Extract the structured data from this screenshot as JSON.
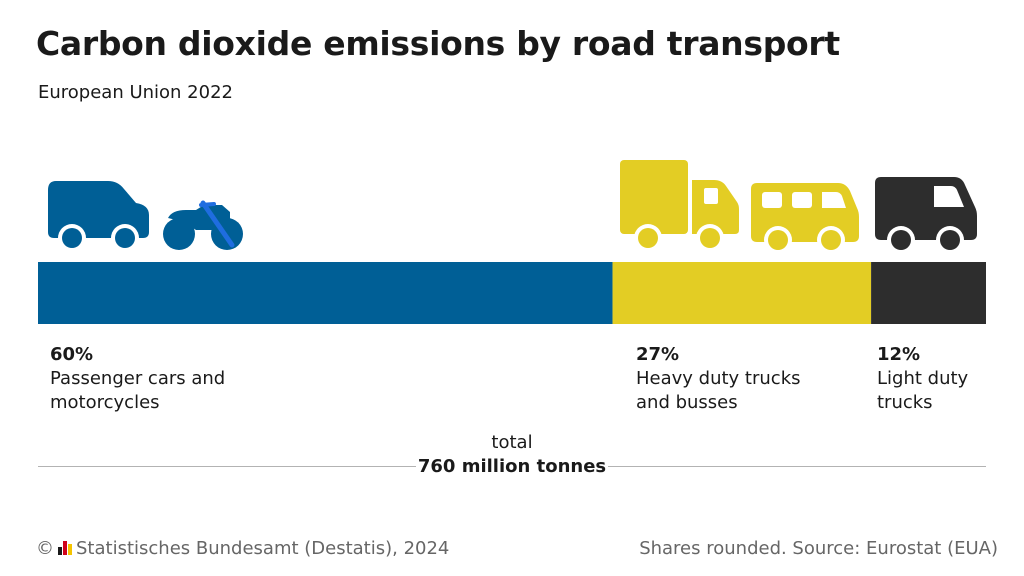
{
  "title": "Carbon dioxide emissions by road transport",
  "subtitle": "European Union 2022",
  "chart_data": {
    "type": "bar",
    "orientation": "horizontal-stacked-100",
    "categories": [
      "Passenger cars and motorcycles",
      "Heavy duty trucks and busses",
      "Light duty trucks"
    ],
    "values": [
      60,
      27,
      12
    ],
    "labels": [
      "60%",
      "27%",
      "12%"
    ],
    "unit": "%",
    "colors": [
      "#005f96",
      "#e3cd24",
      "#2d2d2d"
    ],
    "icons": [
      [
        "car-icon",
        "motorcycle-icon"
      ],
      [
        "truck-icon",
        "bus-icon"
      ],
      [
        "van-icon"
      ]
    ]
  },
  "total": {
    "label": "total",
    "value": "760 million tonnes"
  },
  "footer": {
    "copyright": "©",
    "publisher": "Statistisches Bundesamt (Destatis), 2024",
    "source": "Shares rounded. Source: Eurostat (EUA)"
  }
}
